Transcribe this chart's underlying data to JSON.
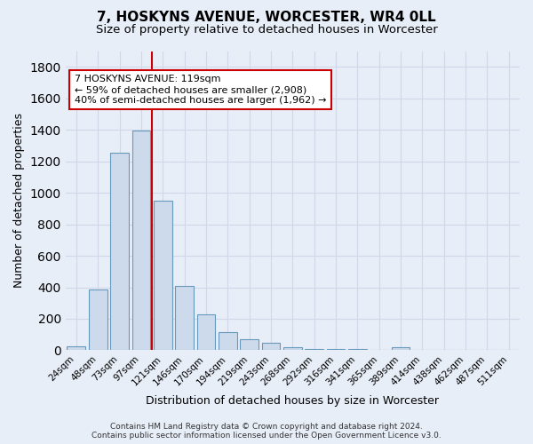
{
  "title": "7, HOSKYNS AVENUE, WORCESTER, WR4 0LL",
  "subtitle": "Size of property relative to detached houses in Worcester",
  "xlabel": "Distribution of detached houses by size in Worcester",
  "ylabel": "Number of detached properties",
  "categories": [
    "24sqm",
    "48sqm",
    "73sqm",
    "97sqm",
    "121sqm",
    "146sqm",
    "170sqm",
    "194sqm",
    "219sqm",
    "243sqm",
    "268sqm",
    "292sqm",
    "316sqm",
    "341sqm",
    "365sqm",
    "389sqm",
    "414sqm",
    "438sqm",
    "462sqm",
    "487sqm",
    "511sqm"
  ],
  "values": [
    25,
    385,
    1255,
    1395,
    950,
    410,
    228,
    115,
    68,
    50,
    18,
    10,
    8,
    10,
    2,
    20,
    0,
    0,
    0,
    0,
    0
  ],
  "bar_color": "#ccdaeb",
  "bar_edge_color": "#6699bb",
  "property_line_x": 3.5,
  "property_line_color": "#cc0000",
  "annotation_text": "7 HOSKYNS AVENUE: 119sqm\n← 59% of detached houses are smaller (2,908)\n40% of semi-detached houses are larger (1,962) →",
  "annotation_box_color": "#ffffff",
  "annotation_box_edge": "#cc0000",
  "background_color": "#e8eef8",
  "grid_color": "#d0d8e8",
  "footer": "Contains HM Land Registry data © Crown copyright and database right 2024.\nContains public sector information licensed under the Open Government Licence v3.0.",
  "ylim": [
    0,
    1900
  ],
  "title_fontsize": 11,
  "subtitle_fontsize": 9.5,
  "annotation_fontsize": 8.0,
  "ylabel_fontsize": 9,
  "xlabel_fontsize": 9,
  "tick_fontsize": 7.5,
  "footer_fontsize": 6.5
}
